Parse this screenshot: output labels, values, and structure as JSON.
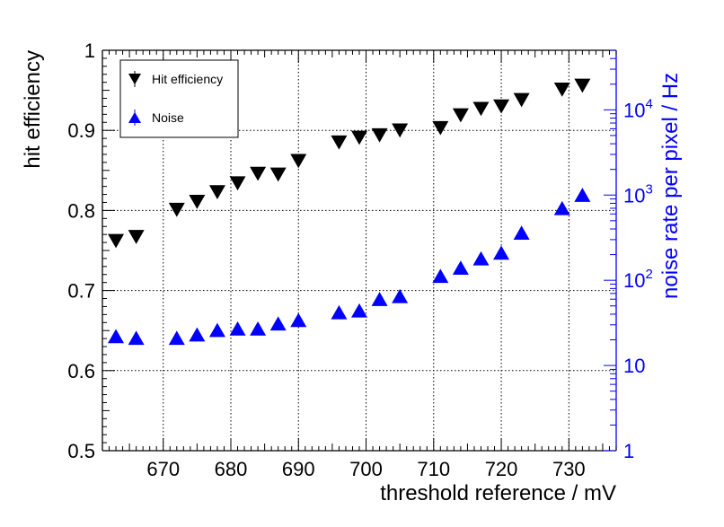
{
  "chart_data": {
    "type": "scatter",
    "x": [
      663,
      666,
      672,
      675,
      678,
      681,
      684,
      687,
      690,
      696,
      699,
      702,
      705,
      711,
      714,
      717,
      720,
      723,
      729,
      732
    ],
    "xlabel": "threshold reference / mV",
    "ylabel": "hit efficiency",
    "ylabel_right": "noise rate per pixel / Hz",
    "xlim": [
      661,
      737
    ],
    "ylim": [
      0.5,
      1.0
    ],
    "ylim_right": [
      1,
      50000
    ],
    "yscale_right": "log",
    "x_ticks": [
      "670",
      "680",
      "690",
      "700",
      "710",
      "720",
      "730"
    ],
    "y_ticks": [
      "0.5",
      "0.6",
      "0.7",
      "0.8",
      "0.9",
      "1"
    ],
    "y_ticks_right": [
      "1",
      "10",
      "10^2",
      "10^3",
      "10^4"
    ],
    "grid": true,
    "legend_position": "top-left",
    "series": [
      {
        "name": "Hit efficiency",
        "axis": "left",
        "marker": "down-triangle",
        "color": "#000000",
        "values": [
          0.762,
          0.767,
          0.801,
          0.811,
          0.823,
          0.834,
          0.846,
          0.845,
          0.862,
          0.885,
          0.891,
          0.894,
          0.9,
          0.903,
          0.919,
          0.927,
          0.93,
          0.938,
          0.951,
          0.956
        ]
      },
      {
        "name": "Noise",
        "axis": "right",
        "marker": "up-triangle",
        "color": "#0000ff",
        "values": [
          22,
          21,
          21,
          23,
          26,
          27,
          27,
          31,
          34,
          42,
          44,
          60,
          65,
          112,
          140,
          180,
          210,
          360,
          700,
          1000
        ]
      }
    ]
  }
}
